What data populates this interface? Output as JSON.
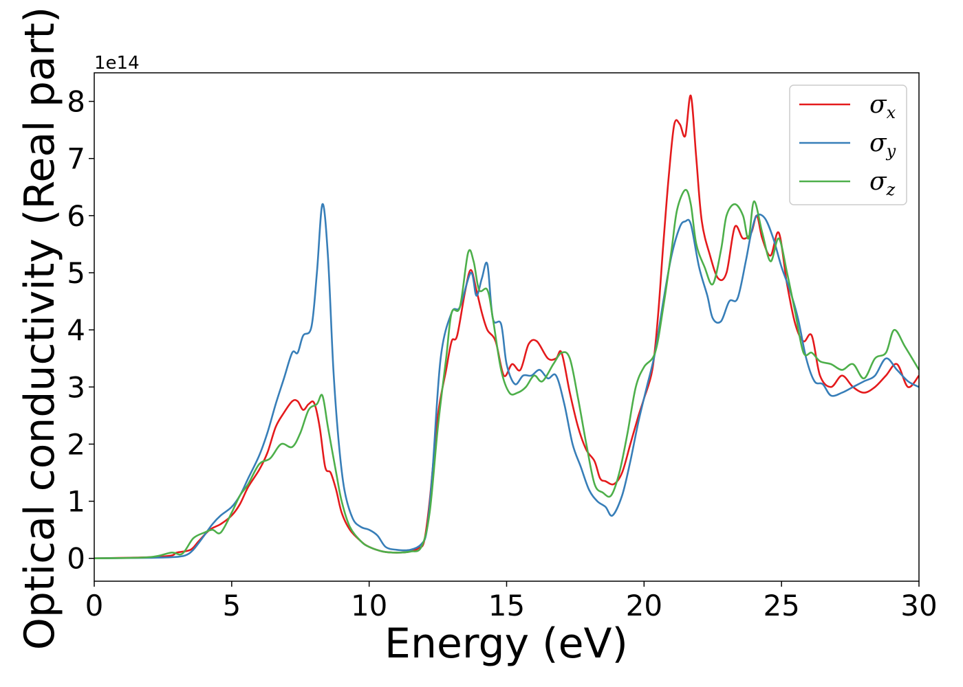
{
  "chart_data": {
    "type": "line",
    "title": "",
    "xlabel": "Energy (eV)",
    "ylabel": "Optical conductivity (Real part)",
    "y_offset_label": "1e14",
    "xlim": [
      0,
      30
    ],
    "ylim": [
      -0.4,
      8.5
    ],
    "xticks": [
      0,
      5,
      10,
      15,
      20,
      25,
      30
    ],
    "yticks": [
      0,
      1,
      2,
      3,
      4,
      5,
      6,
      7,
      8
    ],
    "grid": false,
    "legend_position": "top-right",
    "series": [
      {
        "name": "σx",
        "symbol": "σ",
        "subscript": "x",
        "color": "#e41a1c",
        "points": [
          [
            0,
            0
          ],
          [
            2,
            0.02
          ],
          [
            2.8,
            0.05
          ],
          [
            3.0,
            0.1
          ],
          [
            3.5,
            0.15
          ],
          [
            3.8,
            0.3
          ],
          [
            4.2,
            0.5
          ],
          [
            4.6,
            0.6
          ],
          [
            5.0,
            0.75
          ],
          [
            5.3,
            0.95
          ],
          [
            5.6,
            1.25
          ],
          [
            6.0,
            1.55
          ],
          [
            6.3,
            1.85
          ],
          [
            6.6,
            2.3
          ],
          [
            6.9,
            2.55
          ],
          [
            7.2,
            2.75
          ],
          [
            7.4,
            2.75
          ],
          [
            7.6,
            2.6
          ],
          [
            7.8,
            2.7
          ],
          [
            8.0,
            2.72
          ],
          [
            8.2,
            2.3
          ],
          [
            8.4,
            1.6
          ],
          [
            8.6,
            1.5
          ],
          [
            8.8,
            1.2
          ],
          [
            9.0,
            0.8
          ],
          [
            9.3,
            0.5
          ],
          [
            9.7,
            0.3
          ],
          [
            10.0,
            0.2
          ],
          [
            10.5,
            0.12
          ],
          [
            11.0,
            0.1
          ],
          [
            11.5,
            0.12
          ],
          [
            11.8,
            0.18
          ],
          [
            12.0,
            0.3
          ],
          [
            12.2,
            1.0
          ],
          [
            12.5,
            2.5
          ],
          [
            12.8,
            3.3
          ],
          [
            13.0,
            3.8
          ],
          [
            13.2,
            3.9
          ],
          [
            13.5,
            4.7
          ],
          [
            13.7,
            5.05
          ],
          [
            13.9,
            4.7
          ],
          [
            14.1,
            4.3
          ],
          [
            14.3,
            4.0
          ],
          [
            14.6,
            3.8
          ],
          [
            14.9,
            3.2
          ],
          [
            15.2,
            3.4
          ],
          [
            15.5,
            3.3
          ],
          [
            15.8,
            3.75
          ],
          [
            16.1,
            3.8
          ],
          [
            16.5,
            3.5
          ],
          [
            16.8,
            3.5
          ],
          [
            17.0,
            3.6
          ],
          [
            17.3,
            2.9
          ],
          [
            17.6,
            2.3
          ],
          [
            17.9,
            1.9
          ],
          [
            18.2,
            1.7
          ],
          [
            18.4,
            1.4
          ],
          [
            18.6,
            1.35
          ],
          [
            18.9,
            1.3
          ],
          [
            19.2,
            1.5
          ],
          [
            19.5,
            2.0
          ],
          [
            19.8,
            2.5
          ],
          [
            20.0,
            2.8
          ],
          [
            20.3,
            3.3
          ],
          [
            20.5,
            4.2
          ],
          [
            20.7,
            5.5
          ],
          [
            20.9,
            6.7
          ],
          [
            21.1,
            7.6
          ],
          [
            21.3,
            7.6
          ],
          [
            21.5,
            7.4
          ],
          [
            21.7,
            8.1
          ],
          [
            21.9,
            7.0
          ],
          [
            22.1,
            5.9
          ],
          [
            22.4,
            5.3
          ],
          [
            22.7,
            4.9
          ],
          [
            23.0,
            5.0
          ],
          [
            23.3,
            5.8
          ],
          [
            23.6,
            5.6
          ],
          [
            23.9,
            5.7
          ],
          [
            24.1,
            6.0
          ],
          [
            24.3,
            5.6
          ],
          [
            24.6,
            5.3
          ],
          [
            24.9,
            5.7
          ],
          [
            25.2,
            4.8
          ],
          [
            25.5,
            4.1
          ],
          [
            25.8,
            3.8
          ],
          [
            26.1,
            3.9
          ],
          [
            26.4,
            3.2
          ],
          [
            26.8,
            3.0
          ],
          [
            27.2,
            3.2
          ],
          [
            27.6,
            3.0
          ],
          [
            28.0,
            2.9
          ],
          [
            28.4,
            3.0
          ],
          [
            28.8,
            3.2
          ],
          [
            29.2,
            3.4
          ],
          [
            29.6,
            3.0
          ],
          [
            30.0,
            3.2
          ]
        ]
      },
      {
        "name": "σy",
        "symbol": "σ",
        "subscript": "y",
        "color": "#377eb8",
        "points": [
          [
            0,
            0
          ],
          [
            2,
            0.01
          ],
          [
            2.8,
            0.02
          ],
          [
            3.3,
            0.05
          ],
          [
            3.6,
            0.15
          ],
          [
            4.0,
            0.4
          ],
          [
            4.3,
            0.6
          ],
          [
            4.6,
            0.75
          ],
          [
            5.0,
            0.9
          ],
          [
            5.3,
            1.1
          ],
          [
            5.6,
            1.4
          ],
          [
            6.0,
            1.8
          ],
          [
            6.3,
            2.2
          ],
          [
            6.6,
            2.7
          ],
          [
            6.9,
            3.15
          ],
          [
            7.2,
            3.6
          ],
          [
            7.4,
            3.6
          ],
          [
            7.6,
            3.9
          ],
          [
            7.9,
            4.05
          ],
          [
            8.1,
            5.0
          ],
          [
            8.3,
            6.2
          ],
          [
            8.5,
            5.3
          ],
          [
            8.7,
            3.3
          ],
          [
            8.9,
            2.0
          ],
          [
            9.1,
            1.2
          ],
          [
            9.4,
            0.7
          ],
          [
            9.7,
            0.55
          ],
          [
            10.0,
            0.5
          ],
          [
            10.3,
            0.4
          ],
          [
            10.6,
            0.2
          ],
          [
            11.0,
            0.15
          ],
          [
            11.5,
            0.15
          ],
          [
            11.9,
            0.25
          ],
          [
            12.1,
            0.5
          ],
          [
            12.3,
            1.5
          ],
          [
            12.6,
            3.5
          ],
          [
            13.0,
            4.3
          ],
          [
            13.3,
            4.4
          ],
          [
            13.7,
            5.0
          ],
          [
            13.9,
            4.6
          ],
          [
            14.1,
            4.9
          ],
          [
            14.3,
            5.15
          ],
          [
            14.5,
            4.2
          ],
          [
            14.8,
            4.1
          ],
          [
            15.0,
            3.4
          ],
          [
            15.3,
            3.05
          ],
          [
            15.6,
            3.2
          ],
          [
            15.9,
            3.2
          ],
          [
            16.2,
            3.3
          ],
          [
            16.5,
            3.15
          ],
          [
            16.8,
            3.2
          ],
          [
            17.1,
            2.7
          ],
          [
            17.4,
            2.0
          ],
          [
            17.7,
            1.6
          ],
          [
            18.0,
            1.2
          ],
          [
            18.3,
            1.0
          ],
          [
            18.6,
            0.9
          ],
          [
            18.85,
            0.75
          ],
          [
            19.2,
            1.1
          ],
          [
            19.5,
            1.7
          ],
          [
            19.8,
            2.4
          ],
          [
            20.1,
            3.0
          ],
          [
            20.4,
            3.6
          ],
          [
            20.7,
            4.5
          ],
          [
            21.0,
            5.3
          ],
          [
            21.3,
            5.8
          ],
          [
            21.5,
            5.9
          ],
          [
            21.7,
            5.85
          ],
          [
            22.0,
            5.1
          ],
          [
            22.3,
            4.6
          ],
          [
            22.5,
            4.2
          ],
          [
            22.8,
            4.15
          ],
          [
            23.1,
            4.5
          ],
          [
            23.4,
            4.55
          ],
          [
            23.7,
            5.2
          ],
          [
            23.9,
            5.7
          ],
          [
            24.1,
            6.0
          ],
          [
            24.4,
            5.95
          ],
          [
            24.7,
            5.6
          ],
          [
            25.0,
            5.1
          ],
          [
            25.3,
            4.7
          ],
          [
            25.6,
            4.2
          ],
          [
            25.9,
            3.5
          ],
          [
            26.2,
            3.1
          ],
          [
            26.5,
            3.05
          ],
          [
            26.8,
            2.85
          ],
          [
            27.2,
            2.9
          ],
          [
            27.6,
            3.0
          ],
          [
            28.0,
            3.1
          ],
          [
            28.4,
            3.2
          ],
          [
            28.8,
            3.5
          ],
          [
            29.2,
            3.3
          ],
          [
            29.6,
            3.1
          ],
          [
            30.0,
            3.0
          ]
        ]
      },
      {
        "name": "σz",
        "symbol": "σ",
        "subscript": "z",
        "color": "#4daf4a",
        "points": [
          [
            0,
            0
          ],
          [
            2,
            0.02
          ],
          [
            2.8,
            0.1
          ],
          [
            3.2,
            0.08
          ],
          [
            3.6,
            0.35
          ],
          [
            4.0,
            0.45
          ],
          [
            4.3,
            0.5
          ],
          [
            4.6,
            0.45
          ],
          [
            5.0,
            0.8
          ],
          [
            5.3,
            1.1
          ],
          [
            5.6,
            1.3
          ],
          [
            6.0,
            1.65
          ],
          [
            6.4,
            1.75
          ],
          [
            6.8,
            2.0
          ],
          [
            7.2,
            1.95
          ],
          [
            7.5,
            2.2
          ],
          [
            7.8,
            2.6
          ],
          [
            8.1,
            2.7
          ],
          [
            8.3,
            2.85
          ],
          [
            8.5,
            2.3
          ],
          [
            8.8,
            1.5
          ],
          [
            9.0,
            1.0
          ],
          [
            9.3,
            0.55
          ],
          [
            9.7,
            0.3
          ],
          [
            10.0,
            0.2
          ],
          [
            10.5,
            0.12
          ],
          [
            11.0,
            0.1
          ],
          [
            11.5,
            0.12
          ],
          [
            11.9,
            0.2
          ],
          [
            12.2,
            0.8
          ],
          [
            12.5,
            2.3
          ],
          [
            12.8,
            3.5
          ],
          [
            13.0,
            4.3
          ],
          [
            13.3,
            4.4
          ],
          [
            13.6,
            5.35
          ],
          [
            13.8,
            5.2
          ],
          [
            14.0,
            4.7
          ],
          [
            14.3,
            4.7
          ],
          [
            14.5,
            4.2
          ],
          [
            14.8,
            3.3
          ],
          [
            15.1,
            2.9
          ],
          [
            15.4,
            2.9
          ],
          [
            15.7,
            3.0
          ],
          [
            16.0,
            3.2
          ],
          [
            16.3,
            3.1
          ],
          [
            16.7,
            3.4
          ],
          [
            17.0,
            3.6
          ],
          [
            17.3,
            3.5
          ],
          [
            17.6,
            2.8
          ],
          [
            17.9,
            2.0
          ],
          [
            18.2,
            1.3
          ],
          [
            18.5,
            1.15
          ],
          [
            18.8,
            1.1
          ],
          [
            19.1,
            1.5
          ],
          [
            19.4,
            2.2
          ],
          [
            19.7,
            3.0
          ],
          [
            20.0,
            3.35
          ],
          [
            20.4,
            3.6
          ],
          [
            20.7,
            4.4
          ],
          [
            21.0,
            5.4
          ],
          [
            21.2,
            6.1
          ],
          [
            21.5,
            6.45
          ],
          [
            21.7,
            6.2
          ],
          [
            21.9,
            5.5
          ],
          [
            22.2,
            5.1
          ],
          [
            22.5,
            4.8
          ],
          [
            22.8,
            5.4
          ],
          [
            23.0,
            6.0
          ],
          [
            23.3,
            6.2
          ],
          [
            23.6,
            6.0
          ],
          [
            23.8,
            5.6
          ],
          [
            24.0,
            6.25
          ],
          [
            24.3,
            5.7
          ],
          [
            24.6,
            5.2
          ],
          [
            24.9,
            5.6
          ],
          [
            25.2,
            5.0
          ],
          [
            25.5,
            4.3
          ],
          [
            25.8,
            3.6
          ],
          [
            26.1,
            3.6
          ],
          [
            26.4,
            3.45
          ],
          [
            26.8,
            3.4
          ],
          [
            27.2,
            3.3
          ],
          [
            27.6,
            3.4
          ],
          [
            28.0,
            3.15
          ],
          [
            28.4,
            3.5
          ],
          [
            28.8,
            3.6
          ],
          [
            29.1,
            4.0
          ],
          [
            29.5,
            3.7
          ],
          [
            30.0,
            3.3
          ]
        ]
      }
    ]
  }
}
